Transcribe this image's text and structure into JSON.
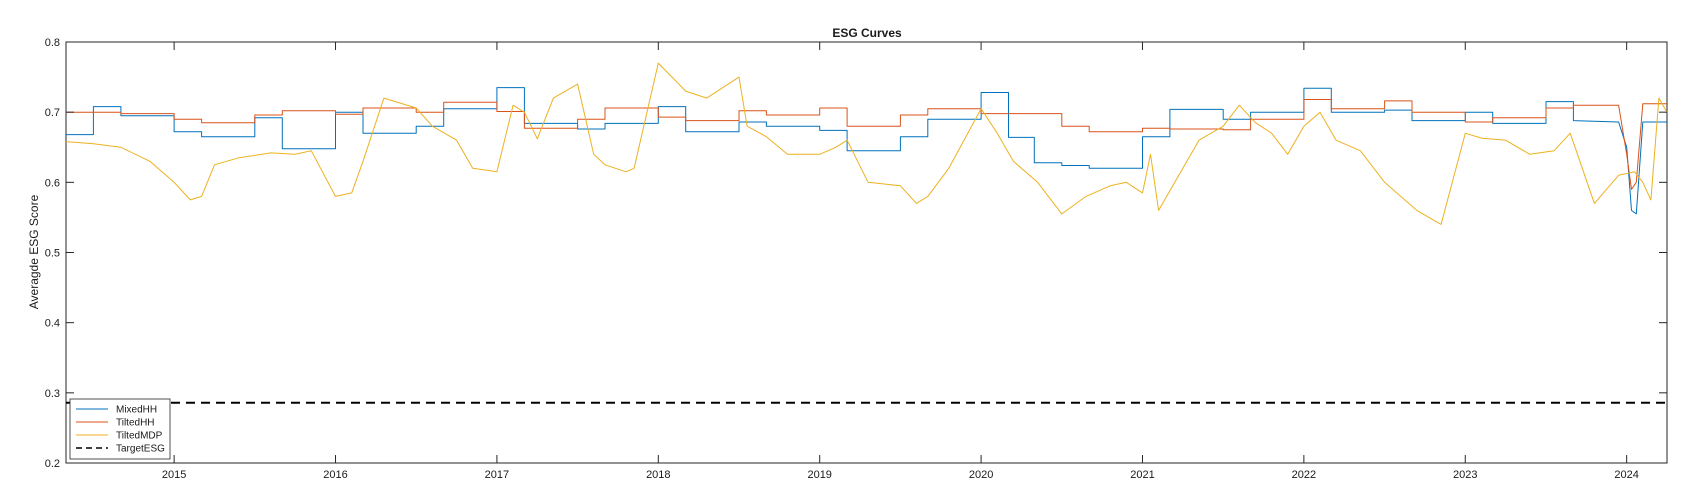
{
  "chart_data": {
    "type": "line",
    "title": "ESG Curves",
    "xlabel": "",
    "ylabel": "Averagde ESG Score",
    "xlim": [
      2014.33,
      2024.25
    ],
    "ylim": [
      0.2,
      0.8
    ],
    "yticks": [
      "0.2",
      "0.3",
      "0.4",
      "0.5",
      "0.6",
      "0.7",
      "0.8"
    ],
    "yticks_values": [
      0.2,
      0.3,
      0.4,
      0.5,
      0.6,
      0.7,
      0.8
    ],
    "xticks": [
      "2015",
      "2016",
      "2017",
      "2018",
      "2019",
      "2020",
      "2021",
      "2022",
      "2023",
      "2024"
    ],
    "xticks_values": [
      2015,
      2016,
      2017,
      2018,
      2019,
      2020,
      2021,
      2022,
      2023,
      2024
    ],
    "grid": false,
    "legend": "bottom-left",
    "colors": {
      "MixedHH": "#0072BD",
      "TiltedHH": "#D95319",
      "TiltedMDP": "#EDB120",
      "TargetESG": "#000000"
    },
    "series": [
      {
        "name": "MixedHH",
        "x": [
          2014.33,
          2014.5,
          2014.5,
          2014.67,
          2014.67,
          2015.0,
          2015.0,
          2015.17,
          2015.17,
          2015.5,
          2015.5,
          2015.67,
          2015.67,
          2016.0,
          2016.0,
          2016.17,
          2016.17,
          2016.5,
          2016.5,
          2016.67,
          2016.67,
          2017.0,
          2017.0,
          2017.17,
          2017.17,
          2017.5,
          2017.5,
          2017.67,
          2017.67,
          2018.0,
          2018.0,
          2018.17,
          2018.17,
          2018.5,
          2018.5,
          2018.67,
          2018.67,
          2019.0,
          2019.0,
          2019.17,
          2019.17,
          2019.5,
          2019.5,
          2019.67,
          2019.67,
          2020.0,
          2020.0,
          2020.17,
          2020.17,
          2020.33,
          2020.33,
          2020.5,
          2020.5,
          2020.67,
          2020.67,
          2021.0,
          2021.0,
          2021.17,
          2021.17,
          2021.5,
          2021.5,
          2021.67,
          2021.67,
          2022.0,
          2022.0,
          2022.17,
          2022.17,
          2022.5,
          2022.5,
          2022.67,
          2022.67,
          2023.0,
          2023.0,
          2023.17,
          2023.17,
          2023.5,
          2023.5,
          2023.67,
          2023.67,
          2023.95,
          2024.0,
          2024.03,
          2024.06,
          2024.1,
          2024.25
        ],
        "y": [
          0.668,
          0.668,
          0.708,
          0.708,
          0.695,
          0.695,
          0.672,
          0.672,
          0.665,
          0.665,
          0.692,
          0.692,
          0.648,
          0.648,
          0.7,
          0.7,
          0.67,
          0.67,
          0.68,
          0.68,
          0.705,
          0.705,
          0.735,
          0.735,
          0.684,
          0.684,
          0.676,
          0.676,
          0.684,
          0.684,
          0.708,
          0.708,
          0.672,
          0.672,
          0.686,
          0.686,
          0.68,
          0.68,
          0.674,
          0.674,
          0.645,
          0.645,
          0.665,
          0.665,
          0.69,
          0.69,
          0.728,
          0.728,
          0.664,
          0.664,
          0.628,
          0.628,
          0.624,
          0.624,
          0.62,
          0.62,
          0.665,
          0.665,
          0.704,
          0.704,
          0.69,
          0.69,
          0.7,
          0.7,
          0.734,
          0.734,
          0.7,
          0.7,
          0.703,
          0.703,
          0.688,
          0.688,
          0.7,
          0.7,
          0.684,
          0.684,
          0.715,
          0.715,
          0.688,
          0.686,
          0.65,
          0.56,
          0.555,
          0.686,
          0.686
        ]
      },
      {
        "name": "TiltedHH",
        "x": [
          2014.33,
          2014.67,
          2014.67,
          2015.0,
          2015.0,
          2015.17,
          2015.17,
          2015.5,
          2015.5,
          2015.67,
          2015.67,
          2016.0,
          2016.0,
          2016.17,
          2016.17,
          2016.5,
          2016.5,
          2016.67,
          2016.67,
          2017.0,
          2017.0,
          2017.17,
          2017.17,
          2017.5,
          2017.5,
          2017.67,
          2017.67,
          2018.0,
          2018.0,
          2018.17,
          2018.17,
          2018.5,
          2018.5,
          2018.67,
          2018.67,
          2019.0,
          2019.0,
          2019.17,
          2019.17,
          2019.5,
          2019.5,
          2019.67,
          2019.67,
          2020.0,
          2020.0,
          2020.5,
          2020.5,
          2020.67,
          2020.67,
          2021.0,
          2021.0,
          2021.17,
          2021.17,
          2021.5,
          2021.5,
          2021.67,
          2021.67,
          2022.0,
          2022.0,
          2022.17,
          2022.17,
          2022.5,
          2022.5,
          2022.67,
          2022.67,
          2023.0,
          2023.0,
          2023.17,
          2023.17,
          2023.5,
          2023.5,
          2023.67,
          2023.67,
          2023.95,
          2024.0,
          2024.03,
          2024.06,
          2024.1,
          2024.25
        ],
        "y": [
          0.7,
          0.7,
          0.698,
          0.698,
          0.69,
          0.69,
          0.685,
          0.685,
          0.696,
          0.696,
          0.702,
          0.702,
          0.697,
          0.697,
          0.706,
          0.706,
          0.7,
          0.7,
          0.714,
          0.714,
          0.701,
          0.701,
          0.677,
          0.677,
          0.69,
          0.69,
          0.706,
          0.706,
          0.693,
          0.693,
          0.688,
          0.688,
          0.702,
          0.702,
          0.696,
          0.696,
          0.706,
          0.706,
          0.68,
          0.68,
          0.696,
          0.696,
          0.705,
          0.705,
          0.698,
          0.698,
          0.68,
          0.68,
          0.672,
          0.672,
          0.677,
          0.677,
          0.676,
          0.676,
          0.675,
          0.675,
          0.69,
          0.69,
          0.718,
          0.718,
          0.705,
          0.705,
          0.716,
          0.716,
          0.7,
          0.7,
          0.686,
          0.686,
          0.692,
          0.692,
          0.706,
          0.706,
          0.71,
          0.71,
          0.64,
          0.59,
          0.6,
          0.712,
          0.712
        ]
      },
      {
        "name": "TiltedMDP",
        "x": [
          2014.33,
          2014.5,
          2014.67,
          2014.85,
          2015.0,
          2015.1,
          2015.17,
          2015.25,
          2015.4,
          2015.6,
          2015.75,
          2015.85,
          2016.0,
          2016.1,
          2016.17,
          2016.3,
          2016.5,
          2016.6,
          2016.75,
          2016.85,
          2017.0,
          2017.1,
          2017.17,
          2017.25,
          2017.35,
          2017.5,
          2017.6,
          2017.67,
          2017.8,
          2017.85,
          2018.0,
          2018.17,
          2018.3,
          2018.4,
          2018.5,
          2018.55,
          2018.67,
          2018.8,
          2019.0,
          2019.1,
          2019.17,
          2019.3,
          2019.5,
          2019.6,
          2019.67,
          2019.8,
          2020.0,
          2020.1,
          2020.2,
          2020.35,
          2020.5,
          2020.65,
          2020.8,
          2020.9,
          2021.0,
          2021.05,
          2021.1,
          2021.2,
          2021.35,
          2021.5,
          2021.6,
          2021.7,
          2021.8,
          2021.9,
          2022.0,
          2022.1,
          2022.2,
          2022.35,
          2022.5,
          2022.7,
          2022.85,
          2023.0,
          2023.1,
          2023.25,
          2023.4,
          2023.55,
          2023.65,
          2023.8,
          2023.95,
          2024.05,
          2024.1,
          2024.15,
          2024.2,
          2024.25
        ],
        "y": [
          0.658,
          0.655,
          0.65,
          0.63,
          0.6,
          0.575,
          0.58,
          0.625,
          0.635,
          0.642,
          0.64,
          0.645,
          0.58,
          0.585,
          0.63,
          0.72,
          0.706,
          0.68,
          0.66,
          0.62,
          0.615,
          0.71,
          0.7,
          0.662,
          0.72,
          0.74,
          0.64,
          0.625,
          0.615,
          0.62,
          0.77,
          0.73,
          0.72,
          0.735,
          0.75,
          0.68,
          0.665,
          0.64,
          0.64,
          0.65,
          0.66,
          0.6,
          0.595,
          0.57,
          0.58,
          0.62,
          0.705,
          0.67,
          0.63,
          0.6,
          0.555,
          0.58,
          0.595,
          0.6,
          0.585,
          0.64,
          0.56,
          0.6,
          0.66,
          0.68,
          0.71,
          0.685,
          0.67,
          0.64,
          0.68,
          0.7,
          0.66,
          0.645,
          0.6,
          0.56,
          0.54,
          0.67,
          0.663,
          0.66,
          0.64,
          0.645,
          0.67,
          0.57,
          0.61,
          0.615,
          0.6,
          0.575,
          0.72,
          0.7
        ]
      },
      {
        "name": "TargetESG",
        "x": [
          2014.33,
          2024.25
        ],
        "y": [
          0.286,
          0.286
        ]
      }
    ]
  }
}
